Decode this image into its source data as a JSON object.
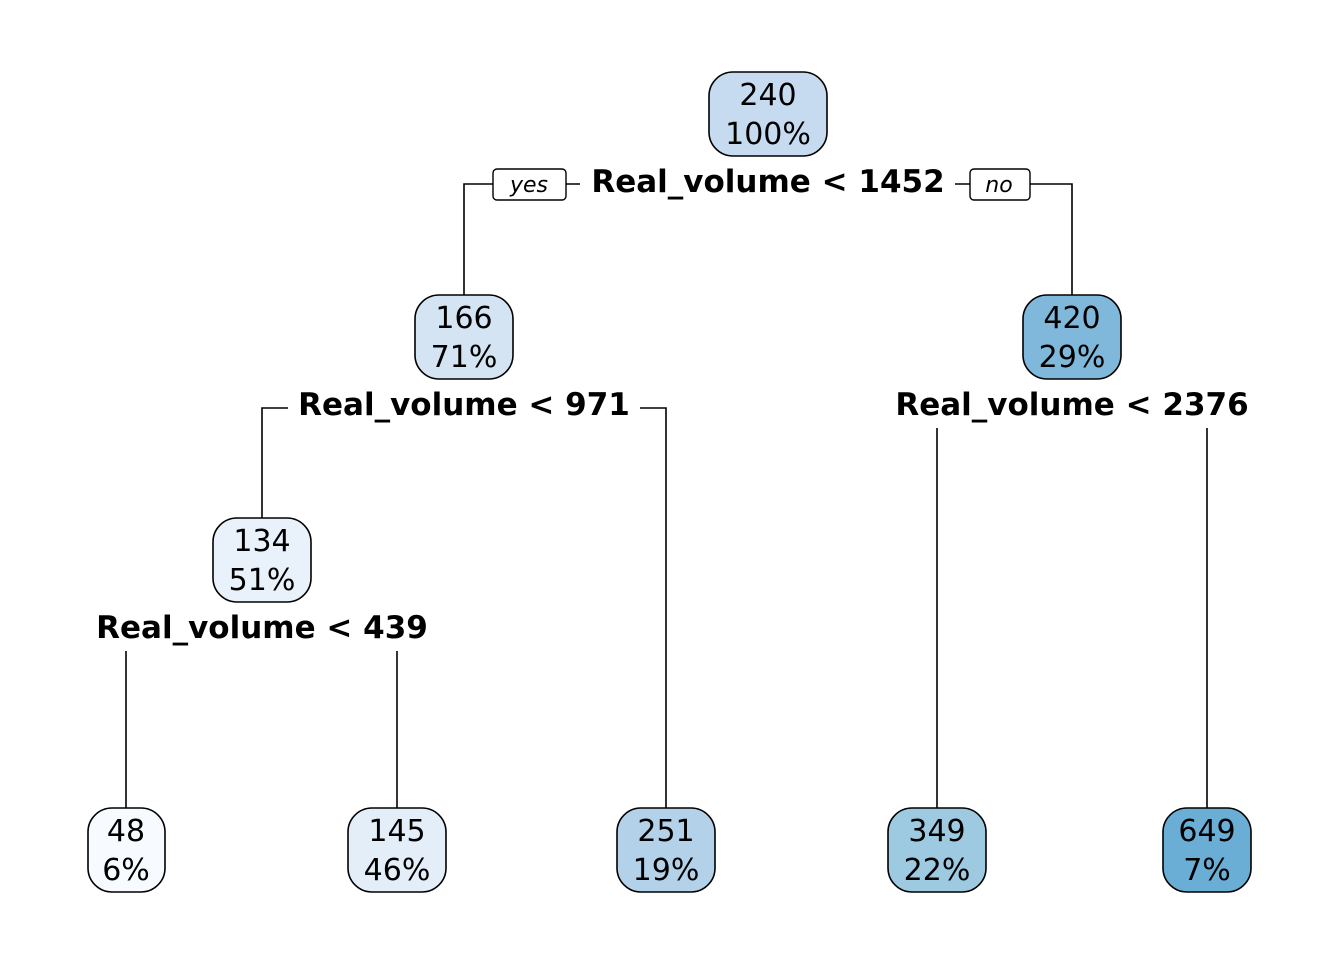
{
  "tree": {
    "root_branch_labels": {
      "left": "yes",
      "right": "no"
    },
    "nodes": [
      {
        "id": "n1",
        "value": "240",
        "percent": "100%",
        "fill": "#c6dbef",
        "split": "Real_volume < 1452"
      },
      {
        "id": "n2",
        "value": "166",
        "percent": "71%",
        "fill": "#d4e4f3",
        "split": "Real_volume < 971"
      },
      {
        "id": "n3",
        "value": "420",
        "percent": "29%",
        "fill": "#7fb8da",
        "split": "Real_volume < 2376"
      },
      {
        "id": "n4",
        "value": "134",
        "percent": "51%",
        "fill": "#e9f2fa",
        "split": "Real_volume < 439"
      },
      {
        "id": "n5",
        "value": "48",
        "percent": "6%",
        "fill": "#f7fbff",
        "split": ""
      },
      {
        "id": "n6",
        "value": "145",
        "percent": "46%",
        "fill": "#e3eef8",
        "split": ""
      },
      {
        "id": "n7",
        "value": "251",
        "percent": "19%",
        "fill": "#b3d2e9",
        "split": ""
      },
      {
        "id": "n8",
        "value": "349",
        "percent": "22%",
        "fill": "#9ecae1",
        "split": ""
      },
      {
        "id": "n9",
        "value": "649",
        "percent": "7%",
        "fill": "#6aaed6",
        "split": ""
      }
    ]
  }
}
